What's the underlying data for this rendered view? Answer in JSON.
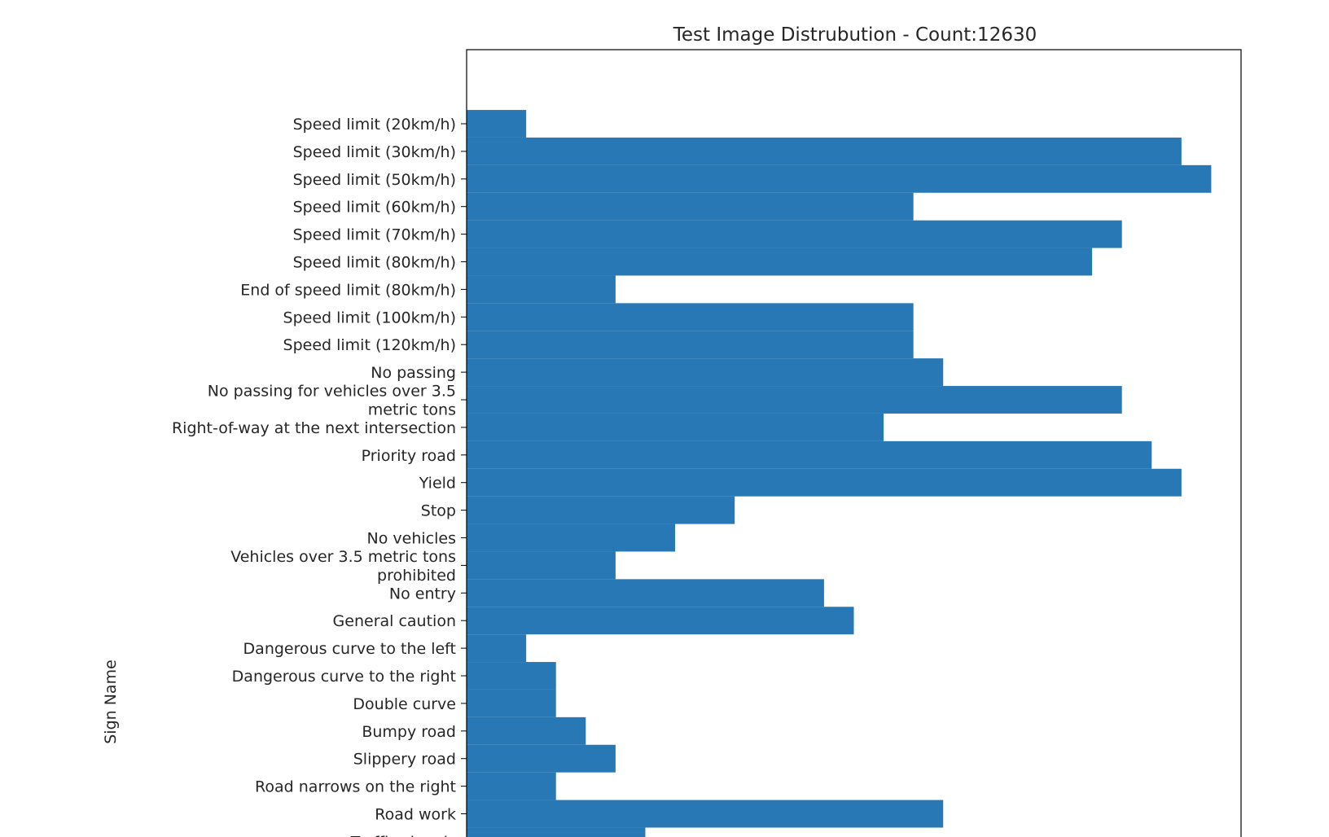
{
  "chart_data": {
    "type": "bar",
    "orientation": "horizontal",
    "title": "Test  Image Distrubution - Count:12630",
    "xlabel": "",
    "ylabel": "Sign Name",
    "xlim": [
      0,
      780
    ],
    "grid": false,
    "legend": "none",
    "bar_color": "#2878b5",
    "categories": [
      "Speed limit (20km/h)",
      "Speed limit (30km/h)",
      "Speed limit (50km/h)",
      "Speed limit (60km/h)",
      "Speed limit (70km/h)",
      "Speed limit (80km/h)",
      "End of speed limit (80km/h)",
      "Speed limit (100km/h)",
      "Speed limit (120km/h)",
      "No passing",
      "No passing for vehicles over 3.5 metric tons",
      "Right-of-way at the next intersection",
      "Priority road",
      "Yield",
      "Stop",
      "No vehicles",
      "Vehicles over 3.5 metric tons prohibited",
      "No entry",
      "General caution",
      "Dangerous curve to the left",
      "Dangerous curve to the right",
      "Double curve",
      "Bumpy road",
      "Slippery road",
      "Road narrows on the right",
      "Road work",
      "Traffic signals"
    ],
    "values": [
      60,
      720,
      750,
      450,
      660,
      630,
      150,
      450,
      450,
      480,
      660,
      420,
      690,
      720,
      270,
      210,
      150,
      360,
      390,
      60,
      90,
      90,
      120,
      150,
      90,
      480,
      180
    ]
  }
}
